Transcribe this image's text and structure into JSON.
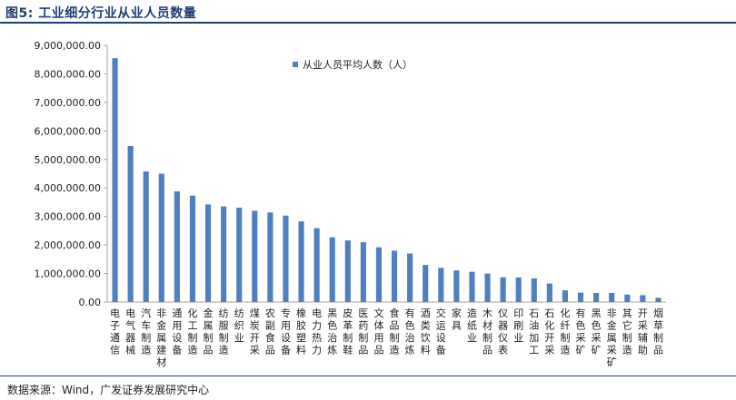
{
  "figure": {
    "title": "图5:  工业细分行业从业人员数量",
    "source": "数据来源：Wind，广发证券发展研究中心"
  },
  "colors": {
    "bar": "#4f7fc0",
    "axis": "#a6a6a6",
    "title": "#1f3f77"
  },
  "chart_data": {
    "type": "bar",
    "title": "",
    "xlabel": "",
    "ylabel": "",
    "ylim": [
      0,
      9000000
    ],
    "yticks": [
      0,
      1000000,
      2000000,
      3000000,
      4000000,
      5000000,
      6000000,
      7000000,
      8000000,
      9000000
    ],
    "ytick_labels": [
      "0.00",
      "1,000,000.00",
      "2,000,000.00",
      "3,000,000.00",
      "4,000,000.00",
      "5,000,000.00",
      "6,000,000.00",
      "7,000,000.00",
      "8,000,000.00",
      "9,000,000.00"
    ],
    "grid": false,
    "legend": {
      "position": "top-right"
    },
    "categories": [
      "电子通信",
      "电气器械",
      "汽车制造",
      "非金属建材",
      "通用设备",
      "化工制造",
      "金属制品",
      "纺服制造",
      "纺织业",
      "煤炭开采",
      "农副食品",
      "专用设备",
      "橡胶塑料",
      "电力热力",
      "黑色治炼",
      "皮革制鞋",
      "医药制品",
      "文体用品",
      "食品制造",
      "有色治炼",
      "酒类饮料",
      "交运设备",
      "家具",
      "造纸业",
      "木材制品",
      "仪器仪表",
      "印刷业",
      "石油加工",
      "石化开采",
      "化纤制造",
      "有色采矿",
      "黑色采矿",
      "非金属采矿",
      "其它制造",
      "开采辅助",
      "烟草制品"
    ],
    "series": [
      {
        "name": "从业人员平均人数（人）",
        "values": [
          8550000,
          5470000,
          4580000,
          4500000,
          3880000,
          3730000,
          3420000,
          3350000,
          3310000,
          3200000,
          3140000,
          3030000,
          2830000,
          2590000,
          2270000,
          2160000,
          2100000,
          1920000,
          1800000,
          1700000,
          1300000,
          1200000,
          1110000,
          1060000,
          1000000,
          870000,
          860000,
          830000,
          650000,
          410000,
          330000,
          320000,
          320000,
          260000,
          240000,
          150000
        ]
      }
    ]
  }
}
